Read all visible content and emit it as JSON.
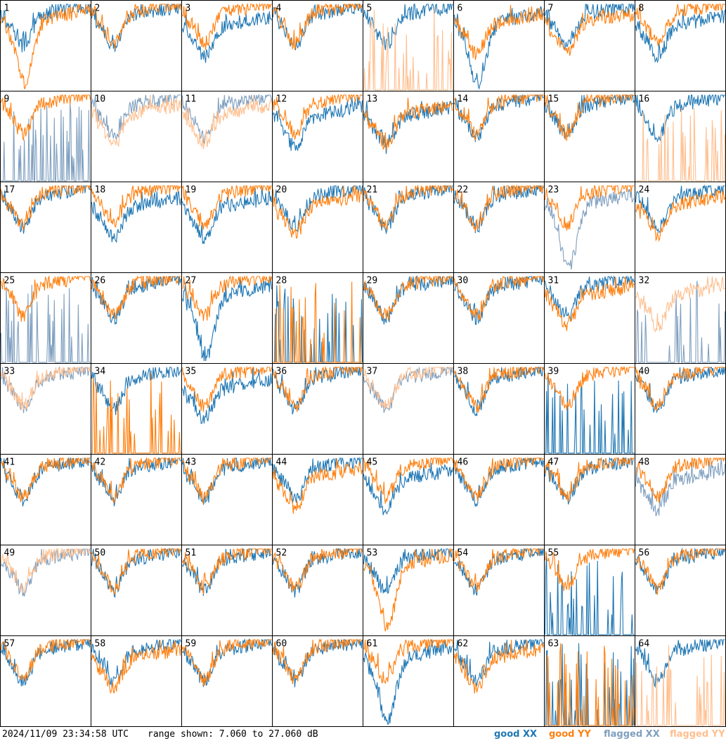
{
  "footer": {
    "timestamp": "2024/11/09 23:34:58 UTC",
    "range_text": "range shown: 7.060 to 27.060 dB"
  },
  "legend": [
    {
      "key": "good_xx",
      "label": "good XX",
      "color": "#1f77b4"
    },
    {
      "key": "good_yy",
      "label": "good YY",
      "color": "#ff7f0e"
    },
    {
      "key": "flagged_xx",
      "label": "flagged XX",
      "color": "#7f9fbf"
    },
    {
      "key": "flagged_yy",
      "label": "flagged YY",
      "color": "#ffbf8f"
    }
  ],
  "chart_data": {
    "type": "line",
    "layout": "8x8 small multiples",
    "ylim": [
      7.06,
      27.06
    ],
    "y_unit": "dB",
    "panels": [
      {
        "label": "1",
        "xx": "good",
        "yy": "good",
        "xx_shape": "normal",
        "yy_shape": "dip"
      },
      {
        "label": "2",
        "xx": "good",
        "yy": "good",
        "xx_shape": "normal",
        "yy_shape": "normal"
      },
      {
        "label": "3",
        "xx": "good",
        "yy": "good",
        "xx_shape": "mid",
        "yy_shape": "normal"
      },
      {
        "label": "4",
        "xx": "good",
        "yy": "good",
        "xx_shape": "normal",
        "yy_shape": "normal"
      },
      {
        "label": "5",
        "xx": "good",
        "yy": "flagged",
        "xx_shape": "normal",
        "yy_shape": "spiky"
      },
      {
        "label": "6",
        "xx": "good",
        "yy": "good",
        "xx_shape": "dip",
        "yy_shape": "mid"
      },
      {
        "label": "7",
        "xx": "good",
        "yy": "good",
        "xx_shape": "normal",
        "yy_shape": "mid"
      },
      {
        "label": "8",
        "xx": "good",
        "yy": "good",
        "xx_shape": "mid",
        "yy_shape": "normal"
      },
      {
        "label": "9",
        "xx": "flagged",
        "yy": "good",
        "xx_shape": "spiky",
        "yy_shape": "normal"
      },
      {
        "label": "10",
        "xx": "flagged",
        "yy": "flagged",
        "xx_shape": "normal",
        "yy_shape": "mid"
      },
      {
        "label": "11",
        "xx": "flagged",
        "yy": "flagged",
        "xx_shape": "normal",
        "yy_shape": "mid"
      },
      {
        "label": "12",
        "xx": "good",
        "yy": "good",
        "xx_shape": "mid",
        "yy_shape": "normal"
      },
      {
        "label": "13",
        "xx": "good",
        "yy": "good",
        "xx_shape": "mid",
        "yy_shape": "mid"
      },
      {
        "label": "14",
        "xx": "good",
        "yy": "good",
        "xx_shape": "normal",
        "yy_shape": "normal"
      },
      {
        "label": "15",
        "xx": "good",
        "yy": "good",
        "xx_shape": "normal",
        "yy_shape": "normal"
      },
      {
        "label": "16",
        "xx": "good",
        "yy": "flagged",
        "xx_shape": "normal",
        "yy_shape": "spiky"
      },
      {
        "label": "17",
        "xx": "good",
        "yy": "good",
        "xx_shape": "normal",
        "yy_shape": "normal"
      },
      {
        "label": "18",
        "xx": "good",
        "yy": "good",
        "xx_shape": "mid",
        "yy_shape": "normal"
      },
      {
        "label": "19",
        "xx": "good",
        "yy": "good",
        "xx_shape": "mid",
        "yy_shape": "normal"
      },
      {
        "label": "20",
        "xx": "good",
        "yy": "good",
        "xx_shape": "normal",
        "yy_shape": "mid"
      },
      {
        "label": "21",
        "xx": "good",
        "yy": "good",
        "xx_shape": "normal",
        "yy_shape": "normal"
      },
      {
        "label": "22",
        "xx": "good",
        "yy": "good",
        "xx_shape": "normal",
        "yy_shape": "normal"
      },
      {
        "label": "23",
        "xx": "flagged",
        "yy": "good",
        "xx_shape": "dip",
        "yy_shape": "normal"
      },
      {
        "label": "24",
        "xx": "good",
        "yy": "good",
        "xx_shape": "normal",
        "yy_shape": "mid"
      },
      {
        "label": "25",
        "xx": "flagged",
        "yy": "good",
        "xx_shape": "spiky",
        "yy_shape": "normal"
      },
      {
        "label": "26",
        "xx": "good",
        "yy": "good",
        "xx_shape": "normal",
        "yy_shape": "normal"
      },
      {
        "label": "27",
        "xx": "good",
        "yy": "good",
        "xx_shape": "dip",
        "yy_shape": "normal"
      },
      {
        "label": "28",
        "xx": "good",
        "yy": "good",
        "xx_shape": "spiky",
        "yy_shape": "spiky"
      },
      {
        "label": "29",
        "xx": "good",
        "yy": "good",
        "xx_shape": "normal",
        "yy_shape": "normal"
      },
      {
        "label": "30",
        "xx": "good",
        "yy": "good",
        "xx_shape": "normal",
        "yy_shape": "normal"
      },
      {
        "label": "31",
        "xx": "good",
        "yy": "good",
        "xx_shape": "normal",
        "yy_shape": "mid"
      },
      {
        "label": "32",
        "xx": "flagged",
        "yy": "flagged",
        "xx_shape": "spiky",
        "yy_shape": "mid"
      },
      {
        "label": "33",
        "xx": "flagged",
        "yy": "flagged",
        "xx_shape": "normal",
        "yy_shape": "normal"
      },
      {
        "label": "34",
        "xx": "good",
        "yy": "good",
        "xx_shape": "normal",
        "yy_shape": "spiky"
      },
      {
        "label": "35",
        "xx": "good",
        "yy": "good",
        "xx_shape": "mid",
        "yy_shape": "normal"
      },
      {
        "label": "36",
        "xx": "good",
        "yy": "good",
        "xx_shape": "normal",
        "yy_shape": "normal"
      },
      {
        "label": "37",
        "xx": "flagged",
        "yy": "flagged",
        "xx_shape": "normal",
        "yy_shape": "normal"
      },
      {
        "label": "38",
        "xx": "good",
        "yy": "good",
        "xx_shape": "normal",
        "yy_shape": "normal"
      },
      {
        "label": "39",
        "xx": "good",
        "yy": "good",
        "xx_shape": "spiky",
        "yy_shape": "normal"
      },
      {
        "label": "40",
        "xx": "good",
        "yy": "good",
        "xx_shape": "normal",
        "yy_shape": "normal"
      },
      {
        "label": "41",
        "xx": "good",
        "yy": "good",
        "xx_shape": "normal",
        "yy_shape": "normal"
      },
      {
        "label": "42",
        "xx": "good",
        "yy": "good",
        "xx_shape": "normal",
        "yy_shape": "normal"
      },
      {
        "label": "43",
        "xx": "good",
        "yy": "good",
        "xx_shape": "normal",
        "yy_shape": "normal"
      },
      {
        "label": "44",
        "xx": "good",
        "yy": "good",
        "xx_shape": "normal",
        "yy_shape": "mid"
      },
      {
        "label": "45",
        "xx": "good",
        "yy": "good",
        "xx_shape": "mid",
        "yy_shape": "normal"
      },
      {
        "label": "46",
        "xx": "good",
        "yy": "good",
        "xx_shape": "normal",
        "yy_shape": "normal"
      },
      {
        "label": "47",
        "xx": "good",
        "yy": "good",
        "xx_shape": "normal",
        "yy_shape": "normal"
      },
      {
        "label": "48",
        "xx": "flagged",
        "yy": "good",
        "xx_shape": "mid",
        "yy_shape": "normal"
      },
      {
        "label": "49",
        "xx": "flagged",
        "yy": "flagged",
        "xx_shape": "normal",
        "yy_shape": "normal"
      },
      {
        "label": "50",
        "xx": "good",
        "yy": "good",
        "xx_shape": "normal",
        "yy_shape": "normal"
      },
      {
        "label": "51",
        "xx": "good",
        "yy": "good",
        "xx_shape": "normal",
        "yy_shape": "normal"
      },
      {
        "label": "52",
        "xx": "good",
        "yy": "good",
        "xx_shape": "normal",
        "yy_shape": "normal"
      },
      {
        "label": "53",
        "xx": "good",
        "yy": "good",
        "xx_shape": "normal",
        "yy_shape": "dip"
      },
      {
        "label": "54",
        "xx": "good",
        "yy": "good",
        "xx_shape": "normal",
        "yy_shape": "normal"
      },
      {
        "label": "55",
        "xx": "good",
        "yy": "good",
        "xx_shape": "spiky",
        "yy_shape": "normal"
      },
      {
        "label": "56",
        "xx": "good",
        "yy": "good",
        "xx_shape": "normal",
        "yy_shape": "normal"
      },
      {
        "label": "57",
        "xx": "good",
        "yy": "good",
        "xx_shape": "normal",
        "yy_shape": "normal"
      },
      {
        "label": "58",
        "xx": "good",
        "yy": "good",
        "xx_shape": "normal",
        "yy_shape": "mid"
      },
      {
        "label": "59",
        "xx": "good",
        "yy": "good",
        "xx_shape": "normal",
        "yy_shape": "normal"
      },
      {
        "label": "60",
        "xx": "good",
        "yy": "good",
        "xx_shape": "normal",
        "yy_shape": "normal"
      },
      {
        "label": "61",
        "xx": "good",
        "yy": "good",
        "xx_shape": "dip",
        "yy_shape": "normal"
      },
      {
        "label": "62",
        "xx": "good",
        "yy": "good",
        "xx_shape": "normal",
        "yy_shape": "mid"
      },
      {
        "label": "63",
        "xx": "good",
        "yy": "good",
        "xx_shape": "spiky",
        "yy_shape": "spiky"
      },
      {
        "label": "64",
        "xx": "good",
        "yy": "flagged",
        "xx_shape": "normal",
        "yy_shape": "spiky"
      }
    ]
  }
}
